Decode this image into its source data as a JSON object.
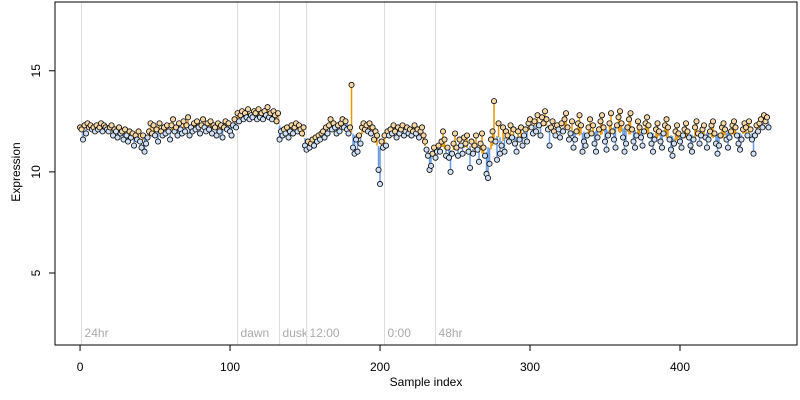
{
  "chart_data": {
    "type": "scatter",
    "x_label": "Sample index",
    "y_label": "Expression",
    "xlim": [
      -16.7,
      478
    ],
    "xticks": [
      0,
      100,
      200,
      300,
      400
    ],
    "ylim": [
      1.44,
      18.4
    ],
    "yticks": [
      5,
      10,
      15
    ],
    "above_color": "#e69500",
    "below_color": "#6a9be0",
    "above_fill": "#f7d9a8",
    "below_fill": "#cfe0f7",
    "markers": [
      1,
      105,
      133,
      151,
      203,
      237
    ],
    "marker_labels": [
      "24hr",
      "dawn",
      "dusk",
      "12:00",
      "0:00",
      "48hr"
    ],
    "values": [
      12.2,
      12.1,
      11.6,
      12.3,
      11.9,
      12.4,
      12.2,
      12.3,
      12.1,
      12.2,
      12.0,
      12.3,
      12.1,
      12.2,
      12.4,
      12.0,
      12.3,
      12.2,
      12.1,
      12.0,
      12.2,
      12.3,
      11.8,
      12.1,
      12.0,
      11.7,
      12.2,
      11.9,
      12.0,
      11.6,
      12.1,
      11.8,
      11.5,
      12.0,
      11.7,
      11.9,
      11.3,
      11.8,
      11.6,
      12.0,
      11.5,
      11.2,
      11.8,
      11.0,
      11.4,
      11.7,
      12.0,
      12.4,
      11.9,
      12.3,
      11.8,
      12.1,
      11.5,
      12.4,
      12.0,
      11.8,
      12.2,
      11.9,
      12.3,
      12.0,
      11.6,
      12.3,
      12.6,
      12.0,
      12.2,
      11.8,
      12.4,
      12.1,
      11.9,
      12.5,
      12.0,
      12.3,
      12.7,
      11.8,
      12.2,
      12.0,
      12.4,
      12.1,
      12.5,
      12.2,
      11.9,
      12.3,
      12.6,
      12.2,
      12.0,
      12.4,
      12.1,
      12.5,
      11.9,
      12.3,
      12.2,
      11.8,
      12.4,
      12.0,
      12.3,
      11.7,
      12.2,
      12.5,
      12.1,
      12.4,
      12.0,
      11.8,
      12.3,
      12.6,
      12.2,
      12.9,
      12.5,
      12.8,
      13.0,
      12.6,
      12.9,
      12.7,
      13.1,
      12.6,
      12.8,
      12.7,
      13.0,
      12.9,
      12.6,
      13.1,
      12.7,
      12.9,
      12.6,
      13.0,
      12.8,
      13.2,
      12.7,
      12.9,
      12.6,
      13.0,
      12.8,
      12.5,
      12.9,
      11.6,
      12.0,
      11.8,
      12.1,
      11.9,
      12.2,
      11.7,
      12.0,
      12.3,
      11.9,
      12.2,
      12.4,
      12.0,
      12.3,
      12.1,
      11.9,
      12.2,
      11.3,
      11.1,
      11.5,
      11.2,
      11.4,
      11.6,
      11.3,
      11.7,
      11.5,
      11.8,
      11.6,
      11.9,
      12.0,
      11.7,
      12.2,
      11.9,
      12.3,
      12.6,
      12.1,
      12.4,
      12.2,
      11.9,
      12.3,
      12.0,
      12.4,
      12.6,
      12.2,
      12.5,
      12.1,
      11.9,
      12.2,
      14.3,
      11.2,
      10.9,
      11.6,
      11.0,
      11.8,
      11.4,
      12.2,
      12.4,
      12.1,
      12.3,
      12.0,
      12.4,
      11.9,
      12.2,
      11.6,
      12.0,
      11.8,
      10.1,
      9.4,
      11.5,
      11.2,
      11.8,
      11.3,
      12.0,
      11.8,
      12.1,
      11.9,
      12.3,
      12.0,
      11.7,
      12.2,
      11.9,
      12.1,
      12.3,
      11.8,
      12.0,
      12.2,
      11.9,
      12.1,
      11.8,
      12.0,
      12.3,
      11.9,
      12.1,
      11.7,
      12.0,
      12.2,
      11.8,
      11.5,
      11.1,
      10.8,
      10.1,
      10.3,
      10.9,
      11.2,
      10.7,
      11.0,
      11.3,
      11.0,
      11.5,
      12.0,
      11.6,
      10.8,
      11.2,
      10.7,
      10.0,
      10.9,
      11.4,
      11.9,
      11.2,
      10.8,
      11.6,
      11.3,
      10.9,
      11.7,
      11.4,
      11.8,
      11.0,
      10.2,
      11.5,
      10.9,
      11.3,
      11.8,
      11.1,
      10.5,
      11.4,
      11.9,
      11.2,
      10.8,
      9.9,
      9.7,
      10.4,
      11.6,
      12.0,
      13.5,
      11.5,
      10.6,
      12.4,
      10.9,
      11.3,
      12.2,
      11.0,
      12.0,
      11.8,
      11.5,
      12.3,
      11.7,
      12.1,
      11.4,
      11.0,
      12.0,
      11.6,
      12.2,
      11.3,
      11.8,
      12.1,
      11.5,
      12.4,
      12.6,
      12.2,
      11.9,
      12.5,
      12.0,
      12.8,
      12.3,
      11.8,
      12.7,
      12.4,
      13.0,
      12.6,
      12.1,
      11.3,
      12.2,
      12.5,
      12.0,
      11.8,
      12.3,
      12.1,
      11.7,
      12.4,
      12.0,
      12.6,
      12.9,
      12.2,
      11.6,
      11.9,
      12.5,
      11.2,
      11.6,
      12.0,
      12.4,
      12.8,
      12.3,
      11.0,
      11.5,
      11.3,
      11.8,
      12.2,
      12.6,
      11.9,
      12.3,
      11.4,
      11.0,
      11.7,
      12.1,
      12.5,
      12.8,
      12.2,
      11.5,
      11.1,
      11.8,
      12.4,
      12.9,
      12.0,
      11.6,
      11.2,
      12.3,
      12.7,
      13.0,
      12.4,
      11.7,
      11.0,
      11.4,
      12.2,
      12.6,
      12.9,
      12.1,
      11.5,
      11.2,
      11.8,
      12.5,
      12.2,
      11.7,
      11.3,
      12.0,
      12.4,
      12.7,
      12.3,
      11.8,
      11.4,
      11.0,
      11.6,
      12.1,
      12.4,
      12.0,
      11.5,
      11.2,
      11.9,
      12.3,
      12.6,
      12.2,
      11.6,
      11.1,
      10.8,
      11.4,
      12.0,
      12.3,
      11.9,
      11.5,
      11.2,
      11.8,
      12.1,
      12.4,
      12.0,
      11.7,
      11.3,
      11.0,
      11.6,
      12.2,
      12.5,
      11.9,
      11.4,
      11.8,
      12.1,
      12.3,
      11.7,
      11.2,
      11.6,
      12.0,
      12.3,
      12.5,
      11.9,
      11.4,
      10.9,
      11.3,
      11.8,
      12.2,
      12.4,
      12.1,
      11.6,
      11.2,
      11.7,
      12.0,
      12.3,
      12.5,
      12.2,
      11.8,
      11.4,
      11.1,
      11.6,
      12.1,
      12.4,
      12.2,
      11.8,
      12.5,
      12.1,
      11.6,
      10.9,
      11.8,
      12.3,
      12.0,
      12.4,
      12.6,
      12.2,
      12.8,
      12.5,
      12.7,
      12.2
    ]
  }
}
